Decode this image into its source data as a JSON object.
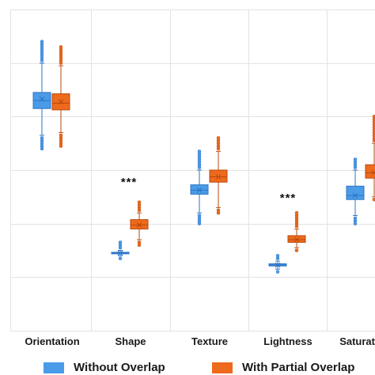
{
  "chart_data": {
    "type": "box",
    "categories": [
      "Orientation",
      "Shape",
      "Texture",
      "Lightness",
      "Saturation"
    ],
    "visible_category_labels": [
      "Orientation",
      "Shape",
      "Texture",
      "Lightness",
      "Saturat"
    ],
    "ylim": [
      0,
      1.2
    ],
    "grid": true,
    "legend_position": "bottom",
    "significance_labels": [
      {
        "category": "Shape",
        "text": "***"
      },
      {
        "category": "Lightness",
        "text": "***"
      }
    ],
    "series": [
      {
        "name": "Without Overlap",
        "color": "#4a9be8",
        "boxes": [
          {
            "whisker_low": 0.73,
            "q1": 0.83,
            "median": 0.86,
            "mean": 0.865,
            "q3": 0.89,
            "whisker_high": 1.0,
            "outliers_low": [
              0.72,
              0.71,
              0.7,
              0.69,
              0.68
            ],
            "outliers_high": [
              1.01,
              1.02,
              1.03,
              1.04,
              1.05,
              1.06,
              1.07,
              1.08
            ]
          },
          {
            "whisker_low": 0.28,
            "q1": 0.288,
            "median": 0.29,
            "mean": 0.29,
            "q3": 0.293,
            "whisker_high": 0.3,
            "outliers_low": [
              0.27
            ],
            "outliers_high": [
              0.31,
              0.32,
              0.33
            ]
          },
          {
            "whisker_low": 0.44,
            "q1": 0.51,
            "median": 0.525,
            "mean": 0.525,
            "q3": 0.545,
            "whisker_high": 0.6,
            "outliers_low": [
              0.43,
              0.42,
              0.41,
              0.4
            ],
            "outliers_high": [
              0.61,
              0.62,
              0.63,
              0.64,
              0.65,
              0.66,
              0.67
            ]
          },
          {
            "whisker_low": 0.23,
            "q1": 0.242,
            "median": 0.245,
            "mean": 0.245,
            "q3": 0.25,
            "whisker_high": 0.26,
            "outliers_low": [
              0.22
            ],
            "outliers_high": [
              0.27,
              0.28
            ]
          },
          {
            "whisker_low": 0.43,
            "q1": 0.49,
            "median": 0.505,
            "mean": 0.505,
            "q3": 0.54,
            "whisker_high": 0.6,
            "outliers_low": [
              0.42,
              0.41,
              0.4
            ],
            "outliers_high": [
              0.61,
              0.62,
              0.63,
              0.64
            ]
          }
        ]
      },
      {
        "name": "With Partial Overlap",
        "color": "#ee6a1c",
        "boxes": [
          {
            "whisker_low": 0.74,
            "q1": 0.825,
            "median": 0.85,
            "mean": 0.855,
            "q3": 0.885,
            "whisker_high": 0.99,
            "outliers_low": [
              0.73,
              0.72,
              0.71,
              0.7,
              0.69
            ],
            "outliers_high": [
              1.0,
              1.01,
              1.02,
              1.03,
              1.04,
              1.05,
              1.06
            ]
          },
          {
            "whisker_low": 0.34,
            "q1": 0.38,
            "median": 0.395,
            "mean": 0.395,
            "q3": 0.415,
            "whisker_high": 0.44,
            "outliers_low": [
              0.33,
              0.32
            ],
            "outliers_high": [
              0.45,
              0.46,
              0.47,
              0.48
            ]
          },
          {
            "whisker_low": 0.46,
            "q1": 0.555,
            "median": 0.575,
            "mean": 0.575,
            "q3": 0.6,
            "whisker_high": 0.67,
            "outliers_low": [
              0.45,
              0.44
            ],
            "outliers_high": [
              0.68,
              0.69,
              0.7,
              0.71,
              0.72
            ]
          },
          {
            "whisker_low": 0.31,
            "q1": 0.33,
            "median": 0.34,
            "mean": 0.34,
            "q3": 0.355,
            "whisker_high": 0.38,
            "outliers_low": [
              0.3
            ],
            "outliers_high": [
              0.39,
              0.4,
              0.41,
              0.42,
              0.43,
              0.44
            ]
          },
          {
            "whisker_low": 0.5,
            "q1": 0.57,
            "median": 0.59,
            "mean": 0.59,
            "q3": 0.62,
            "whisker_high": 0.7,
            "outliers_low": [
              0.49
            ],
            "outliers_high": [
              0.71,
              0.72,
              0.73,
              0.74,
              0.75,
              0.76,
              0.77,
              0.78,
              0.79,
              0.8
            ]
          }
        ]
      }
    ]
  }
}
